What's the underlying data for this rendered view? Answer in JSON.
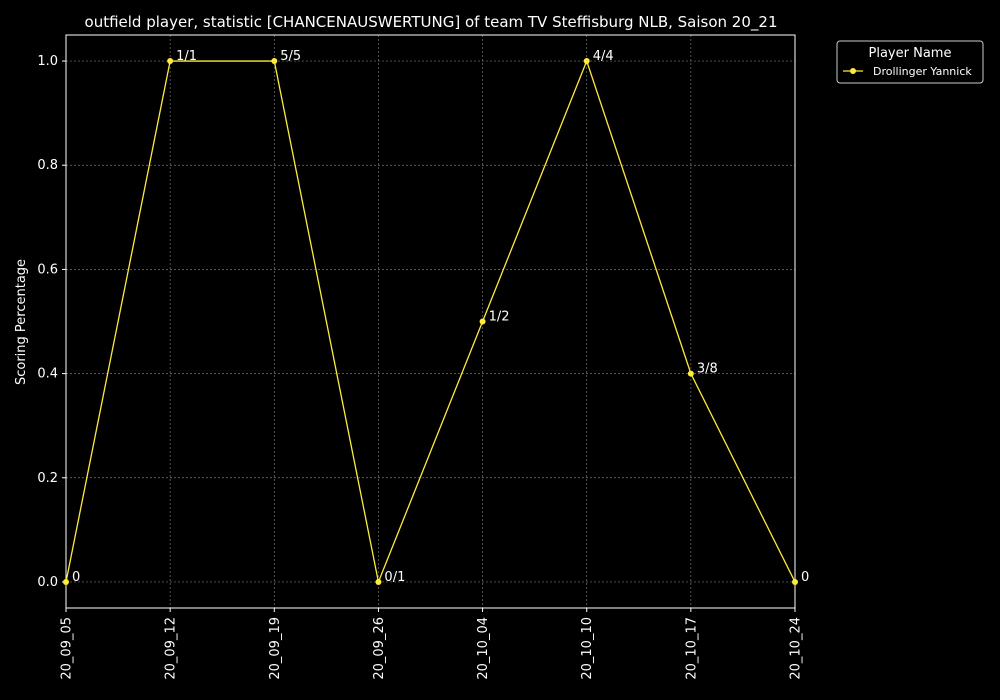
{
  "chart_data": {
    "type": "line",
    "title": "outfield player, statistic [CHANCENAUSWERTUNG] of team TV Steffisburg NLB, Saison 20_21",
    "xlabel": "",
    "ylabel": "Scoring Percentage",
    "categories": [
      "20_09_05",
      "20_09_12",
      "20_09_19",
      "20_09_26",
      "20_10_04",
      "20_10_10",
      "20_10_17",
      "20_10_24"
    ],
    "ylim": [
      -0.05,
      1.05
    ],
    "yticks": [
      "0.0",
      "0.2",
      "0.4",
      "0.6",
      "0.8",
      "1.0"
    ],
    "grid": true,
    "legend": {
      "title": "Player Name",
      "placement": "outside-top-right"
    },
    "series": [
      {
        "name": "Drollinger Yannick",
        "color": "#ffeb3b",
        "values": [
          0,
          1.0,
          1.0,
          0,
          0.5,
          1.0,
          0.4,
          0
        ],
        "labels": [
          "0",
          "1/1",
          "5/5",
          "0/1",
          "1/2",
          "4/4",
          "3/8",
          "0"
        ]
      }
    ]
  }
}
